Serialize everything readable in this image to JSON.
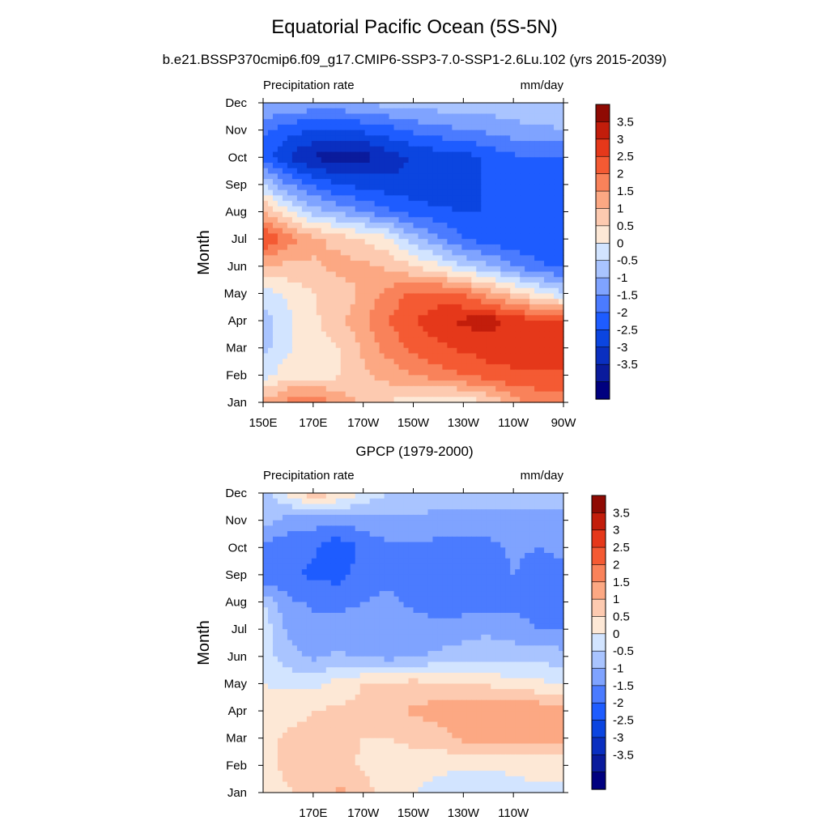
{
  "title": "Equatorial Pacific Ocean (5S-5N)",
  "subtitle": "b.e21.BSSP370cmip6.f09_g17.CMIP6-SSP3-7.0-SSP1-2.6Lu.102 (yrs 2015-2039)",
  "colors": {
    "palette": [
      "#00007f",
      "#0a1b9c",
      "#0a2fc0",
      "#0b45e0",
      "#1e5cff",
      "#4b7bff",
      "#7fa3ff",
      "#a9c4ff",
      "#d2e4ff",
      "#fde8d6",
      "#fdcab0",
      "#fca883",
      "#f9825a",
      "#f45a33",
      "#e5381a",
      "#c21d0b",
      "#8f0a03"
    ]
  },
  "chart_data": [
    {
      "type": "heatmap",
      "panel_title": "",
      "left_label": "Precipitation rate",
      "right_label": "mm/day",
      "ylabel": "Month",
      "y_ticks": [
        "Jan",
        "Feb",
        "Mar",
        "Apr",
        "May",
        "Jun",
        "Jul",
        "Aug",
        "Sep",
        "Oct",
        "Nov",
        "Dec"
      ],
      "x_ticks": [
        "150E",
        "170E",
        "170W",
        "150W",
        "130W",
        "110W",
        "90W"
      ],
      "x_tick_values": [
        150,
        170,
        190,
        210,
        230,
        250,
        270
      ],
      "xlim": [
        150,
        270
      ],
      "colorbar_labels": [
        "3.5",
        "3",
        "2.5",
        "2",
        "1.5",
        "1",
        "0.5",
        "0",
        "-0.5",
        "-1",
        "-1.5",
        "-2",
        "-2.5",
        "-3",
        "-3.5"
      ],
      "levels": [
        -3.5,
        -3,
        -2.5,
        -2,
        -1.5,
        -1,
        -0.5,
        0,
        0.5,
        1,
        1.5,
        2,
        2.5,
        3,
        3.5
      ],
      "x": [
        150,
        160,
        170,
        180,
        190,
        200,
        210,
        220,
        230,
        240,
        250,
        260,
        270
      ],
      "months": [
        1,
        2,
        3,
        4,
        5,
        6,
        7,
        8,
        9,
        10,
        11,
        12
      ],
      "z": [
        [
          1.6,
          2.2,
          2.4,
          1.9,
          1.3,
          1.0,
          0.6,
          0.5,
          0.6,
          1.0,
          1.8,
          2.2,
          2.3
        ],
        [
          0.3,
          0.8,
          0.8,
          0.9,
          1.4,
          1.7,
          2.0,
          2.3,
          2.5,
          2.8,
          2.9,
          2.9,
          2.9
        ],
        [
          -0.2,
          0.4,
          0.8,
          1.0,
          1.6,
          2.2,
          2.6,
          2.9,
          3.1,
          3.2,
          3.3,
          3.3,
          3.4
        ],
        [
          -0.3,
          0.4,
          0.9,
          1.3,
          1.9,
          2.5,
          3.0,
          3.3,
          3.6,
          3.8,
          3.3,
          3.1,
          3.0
        ],
        [
          0.3,
          0.6,
          1.0,
          1.2,
          1.6,
          2.2,
          2.6,
          2.7,
          2.4,
          1.8,
          1.2,
          0.6,
          0.0
        ],
        [
          1.4,
          1.4,
          1.4,
          1.7,
          1.6,
          1.4,
          1.0,
          0.6,
          0.0,
          -0.4,
          -1.0,
          -1.4,
          -1.6
        ],
        [
          3.2,
          2.2,
          1.7,
          1.3,
          1.0,
          0.6,
          -0.3,
          -0.9,
          -1.5,
          -1.8,
          -1.9,
          -1.9,
          -1.9
        ],
        [
          1.6,
          0.6,
          -0.2,
          -0.6,
          -1.0,
          -1.4,
          -1.7,
          -1.9,
          -2.0,
          -2.0,
          -1.9,
          -1.9,
          -1.8
        ],
        [
          0.0,
          -1.0,
          -1.6,
          -2.0,
          -2.2,
          -2.3,
          -2.4,
          -2.4,
          -2.3,
          -1.9,
          -1.8,
          -1.8,
          -2.0
        ],
        [
          -1.8,
          -2.5,
          -3.1,
          -3.2,
          -3.2,
          -2.8,
          -2.4,
          -2.3,
          -2.2,
          -1.9,
          -1.6,
          -1.5,
          -1.6
        ],
        [
          -1.4,
          -1.8,
          -2.0,
          -2.0,
          -1.9,
          -1.7,
          -1.4,
          -1.2,
          -1.0,
          -0.9,
          -0.7,
          -0.6,
          -0.5
        ],
        [
          -0.4,
          -0.6,
          -0.6,
          -0.6,
          -0.5,
          -0.3,
          -0.2,
          -0.2,
          -0.2,
          -0.2,
          -0.1,
          -0.1,
          -0.1
        ]
      ]
    },
    {
      "type": "heatmap",
      "panel_title": "GPCP (1979-2000)",
      "left_label": "Precipitation rate",
      "right_label": "mm/day",
      "ylabel": "Month",
      "y_ticks": [
        "Jan",
        "Feb",
        "Mar",
        "Apr",
        "May",
        "Jun",
        "Jul",
        "Aug",
        "Sep",
        "Oct",
        "Nov",
        "Dec"
      ],
      "x_ticks": [
        "170E",
        "170W",
        "150W",
        "130W",
        "110W"
      ],
      "x_tick_values": [
        170,
        190,
        210,
        230,
        250
      ],
      "xlim": [
        150,
        270
      ],
      "colorbar_labels": [
        "3.5",
        "3",
        "2.5",
        "2",
        "1.5",
        "1",
        "0.5",
        "0",
        "-0.5",
        "-1",
        "-1.5",
        "-2",
        "-2.5",
        "-3",
        "-3.5"
      ],
      "levels": [
        -3.5,
        -3,
        -2.5,
        -2,
        -1.5,
        -1,
        -0.5,
        0,
        0.5,
        1,
        1.5,
        2,
        2.5,
        3,
        3.5
      ],
      "x": [
        150,
        160,
        170,
        180,
        190,
        200,
        210,
        220,
        230,
        240,
        250,
        260,
        270
      ],
      "months": [
        1,
        2,
        3,
        4,
        5,
        6,
        7,
        8,
        9,
        10,
        11,
        12
      ],
      "z": [
        [
          0.8,
          0.9,
          1.2,
          1.6,
          1.3,
          0.6,
          0.5,
          0.3,
          0.2,
          0.2,
          0.3,
          0.4,
          0.4
        ],
        [
          0.7,
          1.2,
          1.4,
          1.2,
          0.9,
          0.8,
          0.8,
          0.6,
          0.6,
          0.6,
          0.6,
          0.7,
          0.7
        ],
        [
          0.8,
          1.1,
          1.2,
          1.2,
          1.0,
          1.0,
          1.1,
          1.3,
          1.6,
          1.7,
          1.6,
          1.7,
          1.6
        ],
        [
          0.6,
          0.8,
          1.0,
          1.1,
          1.1,
          1.2,
          1.6,
          1.7,
          1.9,
          2.0,
          1.9,
          1.9,
          1.8
        ],
        [
          0.5,
          0.4,
          0.3,
          0.7,
          1.0,
          1.1,
          1.2,
          1.1,
          1.0,
          0.9,
          0.7,
          0.6,
          0.5
        ],
        [
          0.2,
          -0.3,
          -0.6,
          -0.4,
          -0.6,
          -0.7,
          -0.6,
          -0.4,
          -0.3,
          -0.2,
          -0.2,
          -0.2,
          -0.3
        ],
        [
          0.3,
          -0.6,
          -0.8,
          -0.8,
          -0.9,
          -0.8,
          -0.8,
          -0.8,
          -0.7,
          -0.6,
          -0.8,
          -1.0,
          -1.0
        ],
        [
          0.0,
          -0.9,
          -1.1,
          -1.1,
          -1.0,
          -0.9,
          -1.1,
          -1.3,
          -1.3,
          -1.2,
          -1.1,
          -1.3,
          -1.2
        ],
        [
          -1.5,
          -1.4,
          -1.6,
          -1.7,
          -1.2,
          -1.1,
          -1.3,
          -1.4,
          -1.3,
          -1.3,
          -1.0,
          -1.2,
          -1.1
        ],
        [
          -1.2,
          -1.3,
          -1.4,
          -1.9,
          -1.4,
          -1.1,
          -1.1,
          -1.2,
          -1.3,
          -1.2,
          -0.9,
          -1.0,
          -0.9
        ],
        [
          -0.3,
          -0.7,
          -0.8,
          -0.8,
          -0.7,
          -0.6,
          -0.6,
          -0.6,
          -0.6,
          -0.6,
          -0.6,
          -0.6,
          -0.6
        ],
        [
          -0.3,
          0.6,
          1.4,
          1.0,
          0.4,
          0.0,
          -0.2,
          -0.3,
          -0.3,
          -0.3,
          -0.3,
          -0.3,
          -0.3
        ]
      ]
    }
  ]
}
